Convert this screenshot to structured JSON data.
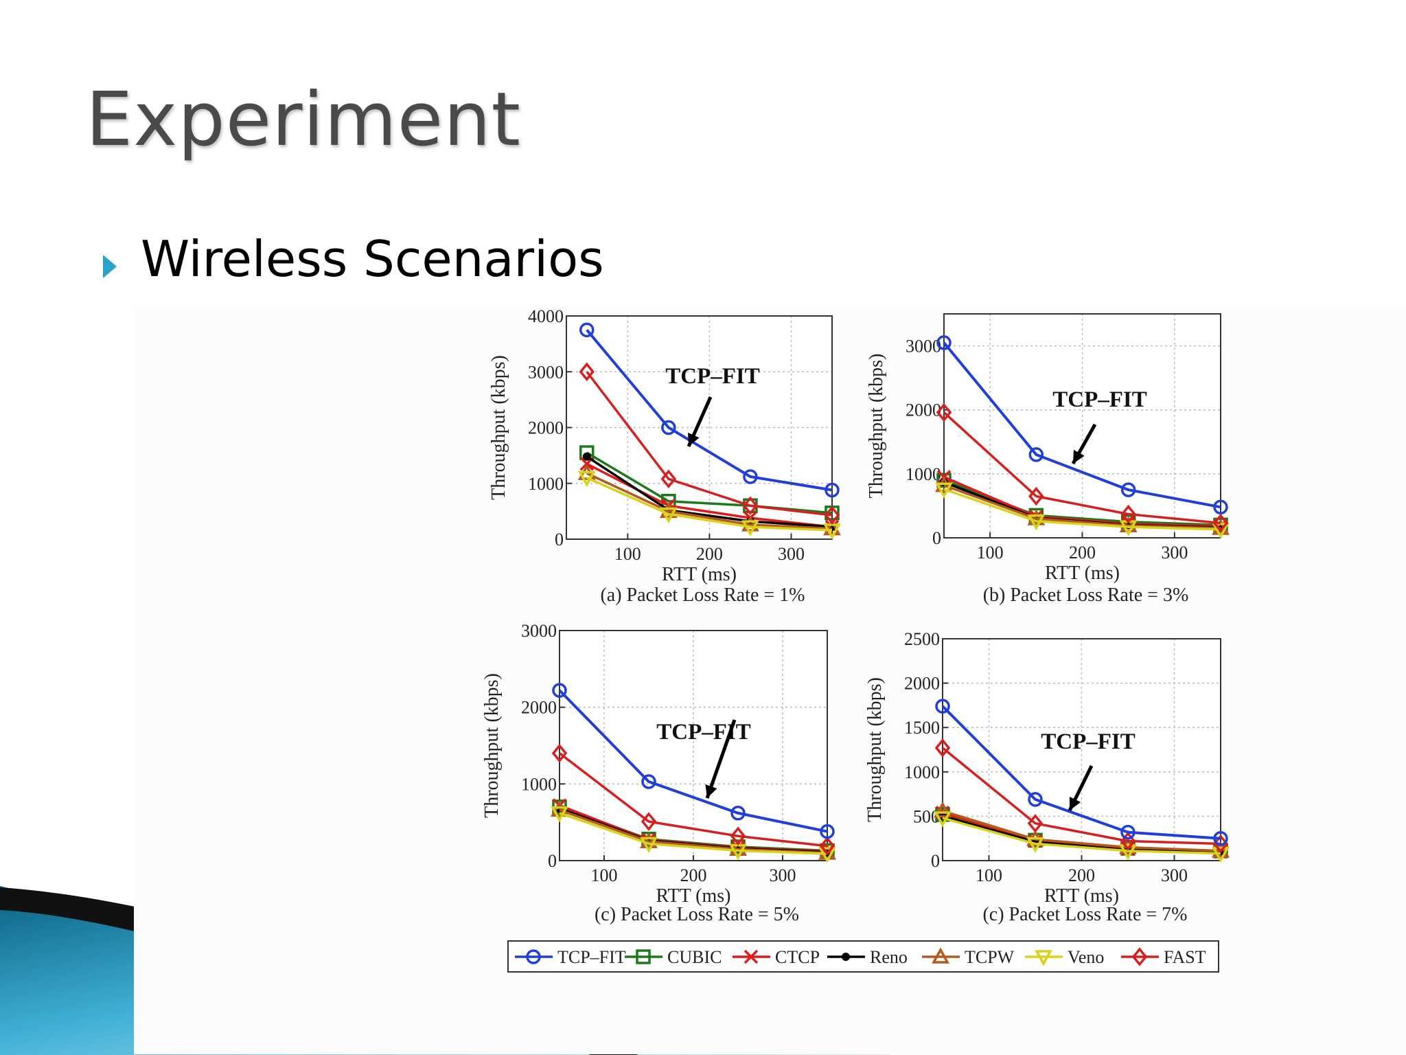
{
  "slide": {
    "title": "Experiment",
    "bullet": "Wireless Scenarios"
  },
  "colors": {
    "bullet": "#2aa3c8",
    "TCP-FIT": "#1f3fd8",
    "CUBIC": "#1a7a1a",
    "CTCP": "#e01a1a",
    "Reno": "#000000",
    "TCPW": "#b35a1f",
    "Veno": "#d8d21a",
    "FAST": "#d42020"
  },
  "chart_data": [
    {
      "type": "line",
      "caption": "(a) Packet Loss Rate = 1%",
      "annotation": "TCP–FIT",
      "xlabel": "RTT (ms)",
      "ylabel": "Throughput (kbps)",
      "xlim": [
        25,
        350
      ],
      "ylim": [
        0,
        4000
      ],
      "xticks": [
        100,
        200,
        300
      ],
      "yticks": [
        0,
        1000,
        2000,
        3000,
        4000
      ],
      "x": [
        50,
        150,
        250,
        350
      ],
      "grid": true,
      "series": [
        {
          "name": "TCP–FIT",
          "values": [
            3750,
            2000,
            1120,
            880
          ]
        },
        {
          "name": "CUBIC",
          "values": [
            1550,
            680,
            600,
            470
          ]
        },
        {
          "name": "CTCP",
          "values": [
            1350,
            600,
            380,
            220
          ]
        },
        {
          "name": "Reno",
          "values": [
            1480,
            520,
            320,
            220
          ]
        },
        {
          "name": "TCPW",
          "values": [
            1180,
            500,
            260,
            190
          ]
        },
        {
          "name": "Veno",
          "values": [
            1100,
            450,
            220,
            160
          ]
        },
        {
          "name": "FAST",
          "values": [
            3000,
            1080,
            600,
            430
          ]
        }
      ]
    },
    {
      "type": "line",
      "caption": "(b) Packet Loss Rate = 3%",
      "annotation": "TCP–FIT",
      "xlabel": "RTT (ms)",
      "ylabel": "Throughput (kbps)",
      "xlim": [
        50,
        350
      ],
      "ylim": [
        0,
        3500
      ],
      "xticks": [
        100,
        200,
        300
      ],
      "yticks": [
        0,
        1000,
        2000,
        3000
      ],
      "x": [
        50,
        150,
        250,
        350
      ],
      "grid": true,
      "series": [
        {
          "name": "TCP–FIT",
          "values": [
            3050,
            1300,
            750,
            480
          ]
        },
        {
          "name": "CUBIC",
          "values": [
            900,
            350,
            250,
            200
          ]
        },
        {
          "name": "CTCP",
          "values": [
            950,
            330,
            220,
            180
          ]
        },
        {
          "name": "Reno",
          "values": [
            870,
            310,
            200,
            160
          ]
        },
        {
          "name": "TCPW",
          "values": [
            820,
            300,
            190,
            150
          ]
        },
        {
          "name": "Veno",
          "values": [
            760,
            260,
            170,
            130
          ]
        },
        {
          "name": "FAST",
          "values": [
            1960,
            650,
            370,
            230
          ]
        }
      ]
    },
    {
      "type": "line",
      "caption": "(c)  Packet Loss Rate = 5%",
      "annotation": "TCP–FIT",
      "xlabel": "RTT (ms)",
      "ylabel": "Throughput (kbps)",
      "xlim": [
        50,
        350
      ],
      "ylim": [
        0,
        3000
      ],
      "xticks": [
        100,
        200,
        300
      ],
      "yticks": [
        0,
        1000,
        2000,
        3000
      ],
      "x": [
        50,
        150,
        250,
        350
      ],
      "grid": true,
      "series": [
        {
          "name": "TCP–FIT",
          "values": [
            2220,
            1030,
            620,
            380
          ]
        },
        {
          "name": "CUBIC",
          "values": [
            700,
            280,
            180,
            130
          ]
        },
        {
          "name": "CTCP",
          "values": [
            720,
            270,
            170,
            120
          ]
        },
        {
          "name": "Reno",
          "values": [
            680,
            260,
            160,
            110
          ]
        },
        {
          "name": "TCPW",
          "values": [
            660,
            250,
            150,
            100
          ]
        },
        {
          "name": "Veno",
          "values": [
            620,
            220,
            130,
            90
          ]
        },
        {
          "name": "FAST",
          "values": [
            1400,
            510,
            320,
            190
          ]
        }
      ]
    },
    {
      "type": "line",
      "caption": "(c)  Packet Loss Rate = 7%",
      "annotation": "TCP–FIT",
      "xlabel": "RTT (ms)",
      "ylabel": "Throughput (kbps)",
      "xlim": [
        50,
        350
      ],
      "ylim": [
        0,
        2500
      ],
      "xticks": [
        100,
        200,
        300
      ],
      "yticks": [
        0,
        500,
        1000,
        1500,
        2000,
        2500
      ],
      "x": [
        50,
        150,
        250,
        350
      ],
      "grid": true,
      "series": [
        {
          "name": "TCP–FIT",
          "values": [
            1740,
            690,
            320,
            250
          ]
        },
        {
          "name": "CUBIC",
          "values": [
            520,
            230,
            140,
            110
          ]
        },
        {
          "name": "CTCP",
          "values": [
            540,
            220,
            130,
            100
          ]
        },
        {
          "name": "Reno",
          "values": [
            500,
            210,
            120,
            90
          ]
        },
        {
          "name": "TCPW",
          "values": [
            560,
            240,
            150,
            110
          ]
        },
        {
          "name": "Veno",
          "values": [
            480,
            190,
            110,
            80
          ]
        },
        {
          "name": "FAST",
          "values": [
            1270,
            420,
            220,
            190
          ]
        }
      ]
    }
  ],
  "legend": [
    {
      "name": "TCP–FIT",
      "marker": "circle"
    },
    {
      "name": "CUBIC",
      "marker": "square"
    },
    {
      "name": "CTCP",
      "marker": "x"
    },
    {
      "name": "Reno",
      "marker": "dot"
    },
    {
      "name": "TCPW",
      "marker": "triangle-up"
    },
    {
      "name": "Veno",
      "marker": "triangle-down"
    },
    {
      "name": "FAST",
      "marker": "diamond"
    }
  ]
}
